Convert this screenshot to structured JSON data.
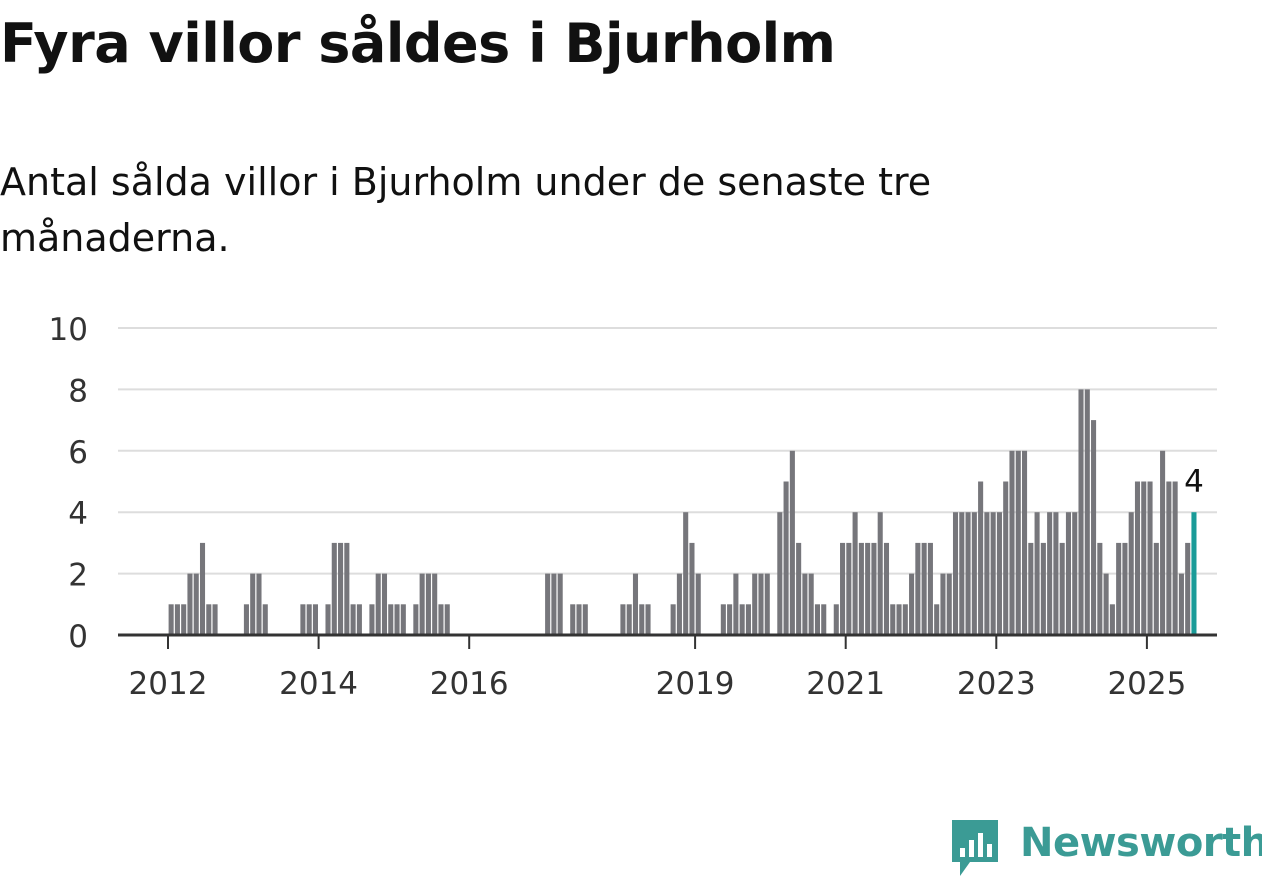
{
  "title": "Fyra villor såldes i Bjurholm",
  "subtitle": "Antal sålda villor i Bjurholm under de senaste tre månaderna.",
  "brand": "Newsworthy",
  "colors": {
    "bar": "#76767b",
    "highlight": "#1a9b98",
    "grid": "#dddddd",
    "axis": "#333333",
    "brand": "#3b9b95"
  },
  "chart_data": {
    "type": "bar",
    "x_start": "2011-01",
    "ylim": [
      0,
      10
    ],
    "yticks": [
      "0",
      "2",
      "4",
      "6",
      "8",
      "10"
    ],
    "xticks": [
      "2012",
      "2014",
      "2016",
      "2019",
      "2021",
      "2023",
      "2025"
    ],
    "highlight_label": "4",
    "values": [
      0,
      0,
      0,
      0,
      0,
      0,
      0,
      0,
      0,
      0,
      0,
      0,
      1,
      1,
      1,
      2,
      2,
      3,
      1,
      1,
      0,
      0,
      0,
      0,
      1,
      2,
      2,
      1,
      0,
      0,
      0,
      0,
      0,
      1,
      1,
      1,
      0,
      1,
      3,
      3,
      3,
      1,
      1,
      0,
      1,
      2,
      2,
      1,
      1,
      1,
      0,
      1,
      2,
      2,
      2,
      1,
      1,
      0,
      0,
      0,
      0,
      0,
      0,
      0,
      0,
      0,
      0,
      0,
      0,
      0,
      0,
      0,
      2,
      2,
      2,
      0,
      1,
      1,
      1,
      0,
      0,
      0,
      0,
      0,
      1,
      1,
      2,
      1,
      1,
      0,
      0,
      0,
      1,
      2,
      4,
      3,
      2,
      0,
      0,
      0,
      1,
      1,
      2,
      1,
      1,
      2,
      2,
      2,
      0,
      4,
      5,
      6,
      3,
      2,
      2,
      1,
      1,
      0,
      1,
      3,
      3,
      4,
      3,
      3,
      3,
      4,
      3,
      1,
      1,
      1,
      2,
      3,
      3,
      3,
      1,
      2,
      2,
      4,
      4,
      4,
      4,
      5,
      4,
      4,
      4,
      5,
      6,
      6,
      6,
      3,
      4,
      3,
      4,
      4,
      3,
      4,
      4,
      8,
      8,
      7,
      3,
      2,
      1,
      3,
      3,
      4,
      5,
      5,
      5,
      3,
      6,
      5,
      5,
      2,
      3,
      4
    ]
  }
}
